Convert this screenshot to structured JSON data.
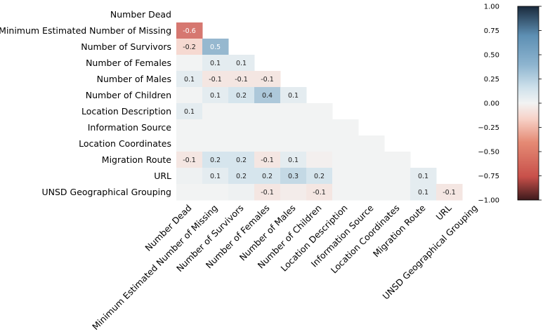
{
  "chart_data": {
    "type": "heatmap",
    "title": "",
    "xlabel": "",
    "ylabel": "",
    "mask": "upper-triangle",
    "labels": [
      "Number Dead",
      "Minimum Estimated Number of Missing",
      "Number of Survivors",
      "Number of Females",
      "Number of Males",
      "Number of Children",
      "Location Description",
      "Information Source",
      "Location Coordinates",
      "Migration Route",
      "URL",
      "UNSD Geographical Grouping"
    ],
    "matrix": [
      [],
      [
        -0.6
      ],
      [
        -0.2,
        0.5
      ],
      [
        0,
        0.1,
        0.1
      ],
      [
        0.1,
        -0.1,
        -0.1,
        -0.1
      ],
      [
        0,
        0.1,
        0.2,
        0.4,
        0.1
      ],
      [
        0.1,
        0,
        0,
        0,
        0,
        0
      ],
      [
        0,
        0,
        0,
        0,
        0,
        0,
        0
      ],
      [
        0,
        0,
        0,
        0,
        0,
        0,
        0,
        0
      ],
      [
        -0.1,
        0.2,
        0.2,
        -0.1,
        0.1,
        -0.03,
        0,
        0,
        0
      ],
      [
        0.03,
        0.1,
        0.2,
        0.2,
        0.3,
        0.2,
        0,
        0,
        0,
        0.1
      ],
      [
        0,
        0,
        0.03,
        -0.1,
        -0.05,
        -0.1,
        0,
        0,
        0,
        0.1,
        -0.1
      ]
    ],
    "annotations": [
      [],
      [
        "-0.6"
      ],
      [
        "-0.2",
        "0.5"
      ],
      [
        "",
        "0.1",
        "0.1"
      ],
      [
        "0.1",
        "-0.1",
        "-0.1",
        "-0.1"
      ],
      [
        "",
        "0.1",
        "0.2",
        "0.4",
        "0.1"
      ],
      [
        "0.1",
        "",
        "",
        "",
        "",
        ""
      ],
      [
        "",
        "",
        "",
        "",
        "",
        "",
        ""
      ],
      [
        "",
        "",
        "",
        "",
        "",
        "",
        "",
        ""
      ],
      [
        "-0.1",
        "0.2",
        "0.2",
        "-0.1",
        "0.1",
        "",
        "",
        "",
        ""
      ],
      [
        "",
        "0.1",
        "0.2",
        "0.2",
        "0.3",
        "0.2",
        "",
        "",
        "",
        "0.1"
      ],
      [
        "",
        "",
        "",
        "-0.1",
        "",
        "-0.1",
        "",
        "",
        "",
        "0.1",
        "-0.1"
      ]
    ],
    "colorbar": {
      "range": [
        -1.0,
        1.0
      ],
      "ticks": [
        "1.00",
        "0.75",
        "0.50",
        "0.25",
        "0.00",
        "−0.25",
        "−0.50",
        "−0.75",
        "−1.00"
      ],
      "tick_values": [
        1.0,
        0.75,
        0.5,
        0.25,
        0.0,
        -0.25,
        -0.5,
        -0.75,
        -1.0
      ]
    },
    "colormap": {
      "negative_end": "#3d1a1c",
      "negative_mid": "#c8504a",
      "negative_light": "#f7d2c8",
      "center": "#f2f3f3",
      "positive_light": "#cfe1eb",
      "positive_mid": "#5d8fb3",
      "positive_end": "#1a2a3c"
    }
  }
}
